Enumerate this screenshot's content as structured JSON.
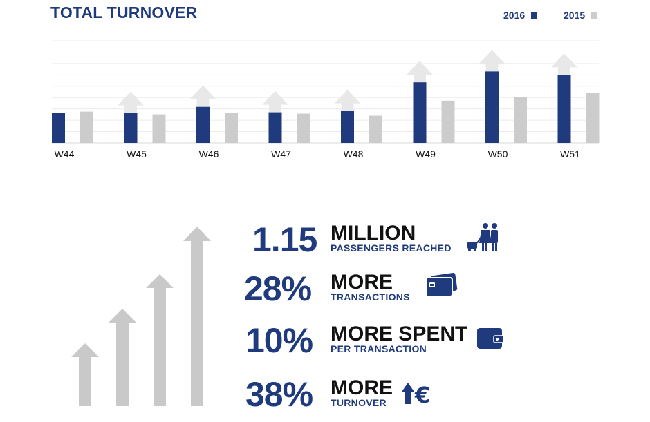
{
  "title": "TOTAL TURNOVER",
  "colors": {
    "y2016": "#1f3a7d",
    "y2015": "#cccccc",
    "arrow": "#e8e8e8",
    "big_arrow": "#c9c9c9",
    "grid": "#ececec"
  },
  "chart_data": {
    "type": "bar",
    "title": "TOTAL TURNOVER",
    "categories": [
      "W44",
      "W45",
      "W46",
      "W47",
      "W48",
      "W49",
      "W50",
      "W51"
    ],
    "series": [
      {
        "name": "2016",
        "values": [
          44,
          44,
          53,
          45,
          47,
          89,
          105,
          100
        ]
      },
      {
        "name": "2015",
        "values": [
          46,
          42,
          44,
          43,
          40,
          62,
          67,
          74
        ]
      }
    ],
    "increase_arrows": [
      false,
      true,
      true,
      true,
      true,
      true,
      true,
      true
    ],
    "ylim": [
      0,
      150
    ],
    "grid": true,
    "legend_position": "top-right"
  },
  "stats": [
    {
      "number": "1.15",
      "headline": "MILLION",
      "sub": "PASSENGERS REACHED",
      "icon": "passengers-icon"
    },
    {
      "number": "28%",
      "headline": "MORE",
      "sub": "TRANSACTIONS",
      "icon": "credit-card-icon"
    },
    {
      "number": "10%",
      "headline": "MORE SPENT",
      "sub": "PER TRANSACTION",
      "icon": "wallet-icon"
    },
    {
      "number": "38%",
      "headline": "MORE",
      "sub": "TURNOVER",
      "icon": "euro-up-icon"
    }
  ]
}
